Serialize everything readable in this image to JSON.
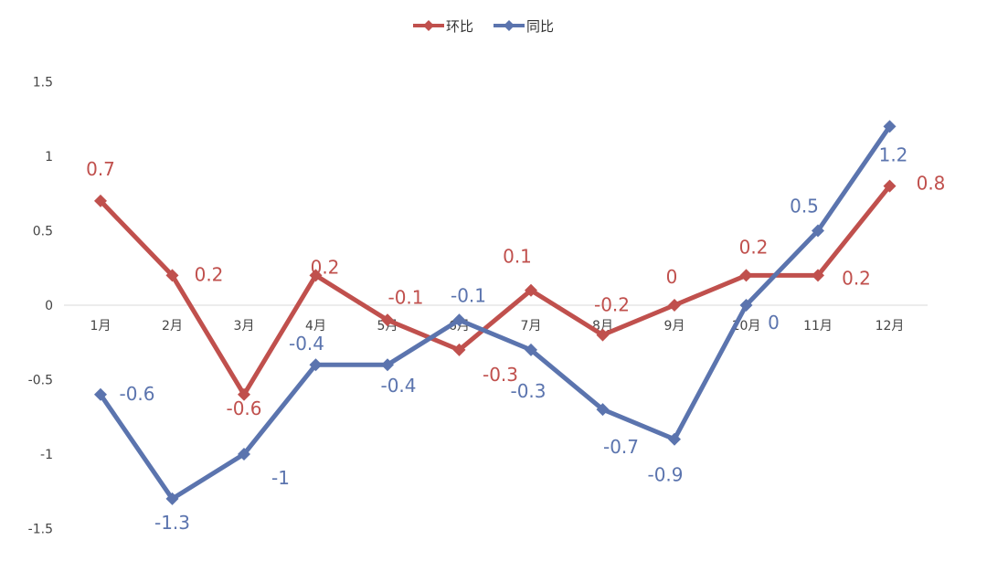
{
  "chart_data": {
    "type": "line",
    "categories": [
      "1月",
      "2月",
      "3月",
      "4月",
      "5月",
      "6月",
      "7月",
      "8月",
      "9月",
      "10月",
      "11月",
      "12月"
    ],
    "series": [
      {
        "name": "环比",
        "color": "#C0504D",
        "values": [
          0.7,
          0.2,
          -0.6,
          0.2,
          -0.1,
          -0.3,
          0.1,
          -0.2,
          0,
          0.2,
          0.2,
          0.8
        ]
      },
      {
        "name": "同比",
        "color": "#5B74AE",
        "values": [
          -0.6,
          -1.3,
          -1,
          -0.4,
          -0.4,
          -0.1,
          -0.3,
          -0.7,
          -0.9,
          0,
          0.5,
          1.2
        ]
      }
    ],
    "yticks": [
      "1.5",
      "1",
      "0.5",
      "0",
      "-0.5",
      "-1",
      "-1.5"
    ],
    "ylim": [
      -1.5,
      1.5
    ],
    "legend_position": "top",
    "grid": false,
    "marker": "diamond"
  }
}
